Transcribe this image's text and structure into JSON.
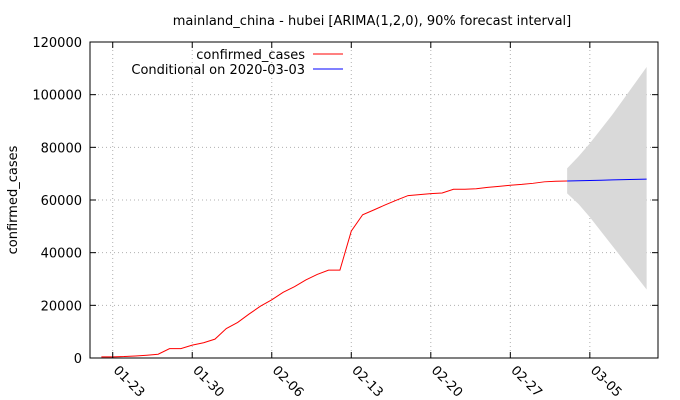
{
  "chart_data": {
    "type": "line",
    "title": "mainland_china - hubei [ARIMA(1,2,0), 90% forecast interval]",
    "xlabel": "",
    "ylabel": "confirmed_cases",
    "ylim": [
      0,
      120000
    ],
    "xlim": [
      "2020-01-21",
      "2020-03-11"
    ],
    "y_ticks": [
      "0",
      "20000",
      "40000",
      "60000",
      "80000",
      "100000",
      "120000"
    ],
    "x_ticks": [
      {
        "date": "2020-01-23",
        "label": "01-23"
      },
      {
        "date": "2020-01-30",
        "label": "01-30"
      },
      {
        "date": "2020-02-06",
        "label": "02-06"
      },
      {
        "date": "2020-02-13",
        "label": "02-13"
      },
      {
        "date": "2020-02-20",
        "label": "02-20"
      },
      {
        "date": "2020-02-27",
        "label": "02-27"
      },
      {
        "date": "2020-03-05",
        "label": "03-05"
      }
    ],
    "grid": true,
    "legend_position": "top-left",
    "series": [
      {
        "name": "confirmed_cases",
        "color": "#ff0000",
        "points": [
          [
            "2020-01-22",
            444
          ],
          [
            "2020-01-23",
            444
          ],
          [
            "2020-01-24",
            549
          ],
          [
            "2020-01-25",
            761
          ],
          [
            "2020-01-26",
            1058
          ],
          [
            "2020-01-27",
            1423
          ],
          [
            "2020-01-28",
            3554
          ],
          [
            "2020-01-29",
            3554
          ],
          [
            "2020-01-30",
            4903
          ],
          [
            "2020-01-31",
            5806
          ],
          [
            "2020-02-01",
            7153
          ],
          [
            "2020-02-02",
            11177
          ],
          [
            "2020-02-03",
            13522
          ],
          [
            "2020-02-04",
            16678
          ],
          [
            "2020-02-05",
            19665
          ],
          [
            "2020-02-06",
            22112
          ],
          [
            "2020-02-07",
            24953
          ],
          [
            "2020-02-08",
            27100
          ],
          [
            "2020-02-09",
            29631
          ],
          [
            "2020-02-10",
            31728
          ],
          [
            "2020-02-11",
            33366
          ],
          [
            "2020-02-12",
            33366
          ],
          [
            "2020-02-13",
            48206
          ],
          [
            "2020-02-14",
            54406
          ],
          [
            "2020-02-15",
            56249
          ],
          [
            "2020-02-16",
            58182
          ],
          [
            "2020-02-17",
            59989
          ],
          [
            "2020-02-18",
            61682
          ],
          [
            "2020-02-19",
            62031
          ],
          [
            "2020-02-20",
            62442
          ],
          [
            "2020-02-21",
            62662
          ],
          [
            "2020-02-22",
            64084
          ],
          [
            "2020-02-23",
            64084
          ],
          [
            "2020-02-24",
            64287
          ],
          [
            "2020-02-25",
            64786
          ],
          [
            "2020-02-26",
            65187
          ],
          [
            "2020-02-27",
            65596
          ],
          [
            "2020-02-28",
            65914
          ],
          [
            "2020-02-29",
            66337
          ],
          [
            "2020-03-01",
            66907
          ],
          [
            "2020-03-02",
            67103
          ],
          [
            "2020-03-03",
            67217
          ]
        ]
      },
      {
        "name": "Conditional on 2020-03-03",
        "color": "#0000ff",
        "points": [
          [
            "2020-03-03",
            67217
          ],
          [
            "2020-03-04",
            67320
          ],
          [
            "2020-03-05",
            67420
          ],
          [
            "2020-03-06",
            67520
          ],
          [
            "2020-03-07",
            67620
          ],
          [
            "2020-03-08",
            67720
          ],
          [
            "2020-03-09",
            67820
          ],
          [
            "2020-03-10",
            67920
          ]
        ]
      }
    ],
    "forecast_interval": {
      "level": "90%",
      "color": "#d9d9d9",
      "points": [
        [
          "2020-03-03",
          62500,
          72000
        ],
        [
          "2020-03-04",
          58500,
          76500
        ],
        [
          "2020-03-05",
          53500,
          81500
        ],
        [
          "2020-03-06",
          48000,
          87000
        ],
        [
          "2020-03-07",
          42500,
          92500
        ],
        [
          "2020-03-08",
          37000,
          98500
        ],
        [
          "2020-03-09",
          31500,
          104500
        ],
        [
          "2020-03-10",
          26000,
          110500
        ]
      ]
    }
  }
}
